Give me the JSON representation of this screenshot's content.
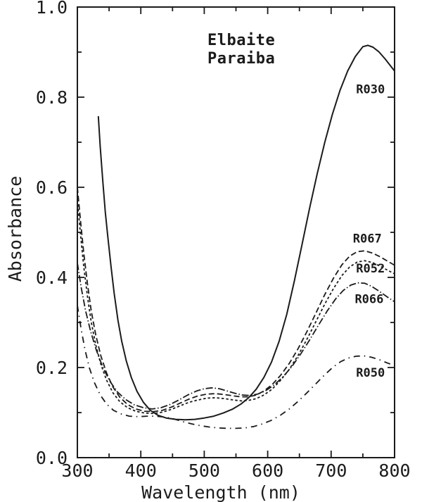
{
  "figure": {
    "background": "#ffffff",
    "ink_color": "#1b1b1b",
    "title_line1": "Elbaite",
    "title_line2": "Paraiba"
  },
  "chart_data": {
    "type": "line",
    "title": "Elbaite Paraiba",
    "xlabel": "Wavelength (nm)",
    "ylabel": "Absorbance",
    "xlim": [
      300,
      800
    ],
    "ylim": [
      0.0,
      1.0
    ],
    "grid": false,
    "legend_position": "inline-labels-right",
    "x_axis": {
      "major_ticks": [
        300,
        400,
        500,
        600,
        700,
        800
      ],
      "tick_labels": [
        "300",
        "400",
        "500",
        "600",
        "700",
        "800"
      ],
      "minor_step": 50
    },
    "y_axis": {
      "major_ticks": [
        0.0,
        0.2,
        0.4,
        0.6,
        0.8,
        1.0
      ],
      "tick_labels": [
        "0.0",
        "0.2",
        "0.4",
        "0.6",
        "0.8",
        "1.0"
      ],
      "minor_step": 0.1
    },
    "series": [
      {
        "name": "R030",
        "line_style": "solid",
        "dash": "",
        "stroke_width": 2.0,
        "label_anchor": {
          "x": 762,
          "y": 0.818
        },
        "points": [
          [
            333,
            0.758
          ],
          [
            336,
            0.69
          ],
          [
            340,
            0.615
          ],
          [
            344,
            0.545
          ],
          [
            348,
            0.49
          ],
          [
            353,
            0.425
          ],
          [
            358,
            0.365
          ],
          [
            364,
            0.305
          ],
          [
            370,
            0.258
          ],
          [
            377,
            0.215
          ],
          [
            385,
            0.178
          ],
          [
            394,
            0.147
          ],
          [
            404,
            0.123
          ],
          [
            415,
            0.105
          ],
          [
            427,
            0.094
          ],
          [
            440,
            0.088
          ],
          [
            455,
            0.085
          ],
          [
            470,
            0.084
          ],
          [
            485,
            0.085
          ],
          [
            500,
            0.088
          ],
          [
            515,
            0.092
          ],
          [
            530,
            0.099
          ],
          [
            545,
            0.108
          ],
          [
            558,
            0.119
          ],
          [
            570,
            0.133
          ],
          [
            582,
            0.152
          ],
          [
            594,
            0.178
          ],
          [
            606,
            0.212
          ],
          [
            618,
            0.258
          ],
          [
            630,
            0.318
          ],
          [
            642,
            0.392
          ],
          [
            654,
            0.472
          ],
          [
            666,
            0.553
          ],
          [
            678,
            0.63
          ],
          [
            690,
            0.7
          ],
          [
            702,
            0.762
          ],
          [
            714,
            0.815
          ],
          [
            726,
            0.858
          ],
          [
            738,
            0.89
          ],
          [
            750,
            0.912
          ],
          [
            758,
            0.915
          ],
          [
            766,
            0.911
          ],
          [
            775,
            0.901
          ],
          [
            785,
            0.885
          ],
          [
            800,
            0.858
          ]
        ]
      },
      {
        "name": "R067",
        "line_style": "long-dash",
        "dash": "8 4",
        "stroke_width": 1.8,
        "label_anchor": {
          "x": 757,
          "y": 0.487
        },
        "points": [
          [
            300,
            0.6
          ],
          [
            305,
            0.525
          ],
          [
            310,
            0.455
          ],
          [
            316,
            0.385
          ],
          [
            322,
            0.325
          ],
          [
            329,
            0.272
          ],
          [
            337,
            0.226
          ],
          [
            346,
            0.188
          ],
          [
            356,
            0.157
          ],
          [
            367,
            0.134
          ],
          [
            379,
            0.118
          ],
          [
            392,
            0.108
          ],
          [
            406,
            0.103
          ],
          [
            420,
            0.102
          ],
          [
            434,
            0.105
          ],
          [
            448,
            0.112
          ],
          [
            462,
            0.121
          ],
          [
            476,
            0.13
          ],
          [
            490,
            0.137
          ],
          [
            504,
            0.141
          ],
          [
            518,
            0.142
          ],
          [
            532,
            0.14
          ],
          [
            546,
            0.137
          ],
          [
            558,
            0.135
          ],
          [
            570,
            0.135
          ],
          [
            582,
            0.139
          ],
          [
            594,
            0.148
          ],
          [
            607,
            0.162
          ],
          [
            620,
            0.182
          ],
          [
            634,
            0.209
          ],
          [
            648,
            0.242
          ],
          [
            662,
            0.28
          ],
          [
            676,
            0.321
          ],
          [
            690,
            0.362
          ],
          [
            704,
            0.399
          ],
          [
            717,
            0.428
          ],
          [
            729,
            0.447
          ],
          [
            741,
            0.457
          ],
          [
            753,
            0.459
          ],
          [
            765,
            0.454
          ],
          [
            777,
            0.446
          ],
          [
            789,
            0.436
          ],
          [
            800,
            0.427
          ]
        ]
      },
      {
        "name": "R052",
        "line_style": "short-dash",
        "dash": "3.5 3",
        "stroke_width": 1.8,
        "label_anchor": {
          "x": 762,
          "y": 0.42
        },
        "points": [
          [
            300,
            0.572
          ],
          [
            305,
            0.495
          ],
          [
            310,
            0.425
          ],
          [
            316,
            0.357
          ],
          [
            322,
            0.3
          ],
          [
            329,
            0.25
          ],
          [
            337,
            0.207
          ],
          [
            346,
            0.172
          ],
          [
            356,
            0.144
          ],
          [
            367,
            0.124
          ],
          [
            379,
            0.111
          ],
          [
            392,
            0.103
          ],
          [
            406,
            0.099
          ],
          [
            420,
            0.098
          ],
          [
            434,
            0.101
          ],
          [
            448,
            0.107
          ],
          [
            462,
            0.115
          ],
          [
            476,
            0.123
          ],
          [
            490,
            0.128
          ],
          [
            504,
            0.132
          ],
          [
            518,
            0.133
          ],
          [
            532,
            0.131
          ],
          [
            546,
            0.128
          ],
          [
            558,
            0.126
          ],
          [
            570,
            0.127
          ],
          [
            582,
            0.131
          ],
          [
            594,
            0.139
          ],
          [
            607,
            0.152
          ],
          [
            620,
            0.171
          ],
          [
            634,
            0.196
          ],
          [
            648,
            0.227
          ],
          [
            662,
            0.263
          ],
          [
            676,
            0.302
          ],
          [
            690,
            0.341
          ],
          [
            704,
            0.376
          ],
          [
            717,
            0.404
          ],
          [
            729,
            0.423
          ],
          [
            741,
            0.434
          ],
          [
            753,
            0.437
          ],
          [
            765,
            0.433
          ],
          [
            777,
            0.425
          ],
          [
            789,
            0.416
          ],
          [
            800,
            0.408
          ]
        ]
      },
      {
        "name": "R066",
        "line_style": "dash-dot",
        "dash": "10 3 1.5 3",
        "stroke_width": 1.8,
        "label_anchor": {
          "x": 760,
          "y": 0.352
        },
        "points": [
          [
            300,
            0.432
          ],
          [
            306,
            0.378
          ],
          [
            313,
            0.326
          ],
          [
            321,
            0.28
          ],
          [
            330,
            0.238
          ],
          [
            340,
            0.201
          ],
          [
            351,
            0.17
          ],
          [
            363,
            0.146
          ],
          [
            376,
            0.129
          ],
          [
            390,
            0.117
          ],
          [
            404,
            0.111
          ],
          [
            418,
            0.108
          ],
          [
            432,
            0.111
          ],
          [
            446,
            0.118
          ],
          [
            460,
            0.128
          ],
          [
            474,
            0.139
          ],
          [
            488,
            0.148
          ],
          [
            500,
            0.153
          ],
          [
            512,
            0.155
          ],
          [
            524,
            0.153
          ],
          [
            536,
            0.148
          ],
          [
            548,
            0.143
          ],
          [
            560,
            0.139
          ],
          [
            572,
            0.138
          ],
          [
            584,
            0.141
          ],
          [
            596,
            0.148
          ],
          [
            610,
            0.161
          ],
          [
            624,
            0.179
          ],
          [
            638,
            0.202
          ],
          [
            652,
            0.23
          ],
          [
            666,
            0.261
          ],
          [
            680,
            0.294
          ],
          [
            694,
            0.326
          ],
          [
            707,
            0.352
          ],
          [
            719,
            0.371
          ],
          [
            731,
            0.383
          ],
          [
            742,
            0.388
          ],
          [
            753,
            0.387
          ],
          [
            764,
            0.38
          ],
          [
            776,
            0.369
          ],
          [
            788,
            0.357
          ],
          [
            800,
            0.346
          ]
        ]
      },
      {
        "name": "R050",
        "line_style": "sparse-dash-dot",
        "dash": "9 6 1.5 6",
        "stroke_width": 1.8,
        "label_anchor": {
          "x": 762,
          "y": 0.189
        },
        "points": [
          [
            300,
            0.338
          ],
          [
            306,
            0.285
          ],
          [
            312,
            0.24
          ],
          [
            319,
            0.199
          ],
          [
            327,
            0.166
          ],
          [
            336,
            0.139
          ],
          [
            346,
            0.119
          ],
          [
            357,
            0.105
          ],
          [
            369,
            0.097
          ],
          [
            382,
            0.092
          ],
          [
            396,
            0.091
          ],
          [
            410,
            0.092
          ],
          [
            424,
            0.092
          ],
          [
            438,
            0.09
          ],
          [
            452,
            0.086
          ],
          [
            466,
            0.08
          ],
          [
            480,
            0.075
          ],
          [
            494,
            0.071
          ],
          [
            508,
            0.068
          ],
          [
            522,
            0.066
          ],
          [
            536,
            0.065
          ],
          [
            550,
            0.065
          ],
          [
            564,
            0.066
          ],
          [
            578,
            0.069
          ],
          [
            592,
            0.075
          ],
          [
            606,
            0.083
          ],
          [
            620,
            0.094
          ],
          [
            634,
            0.108
          ],
          [
            648,
            0.125
          ],
          [
            662,
            0.144
          ],
          [
            676,
            0.164
          ],
          [
            690,
            0.184
          ],
          [
            703,
            0.201
          ],
          [
            715,
            0.213
          ],
          [
            727,
            0.221
          ],
          [
            739,
            0.225
          ],
          [
            751,
            0.226
          ],
          [
            763,
            0.223
          ],
          [
            775,
            0.218
          ],
          [
            787,
            0.211
          ],
          [
            800,
            0.204
          ]
        ]
      }
    ]
  }
}
